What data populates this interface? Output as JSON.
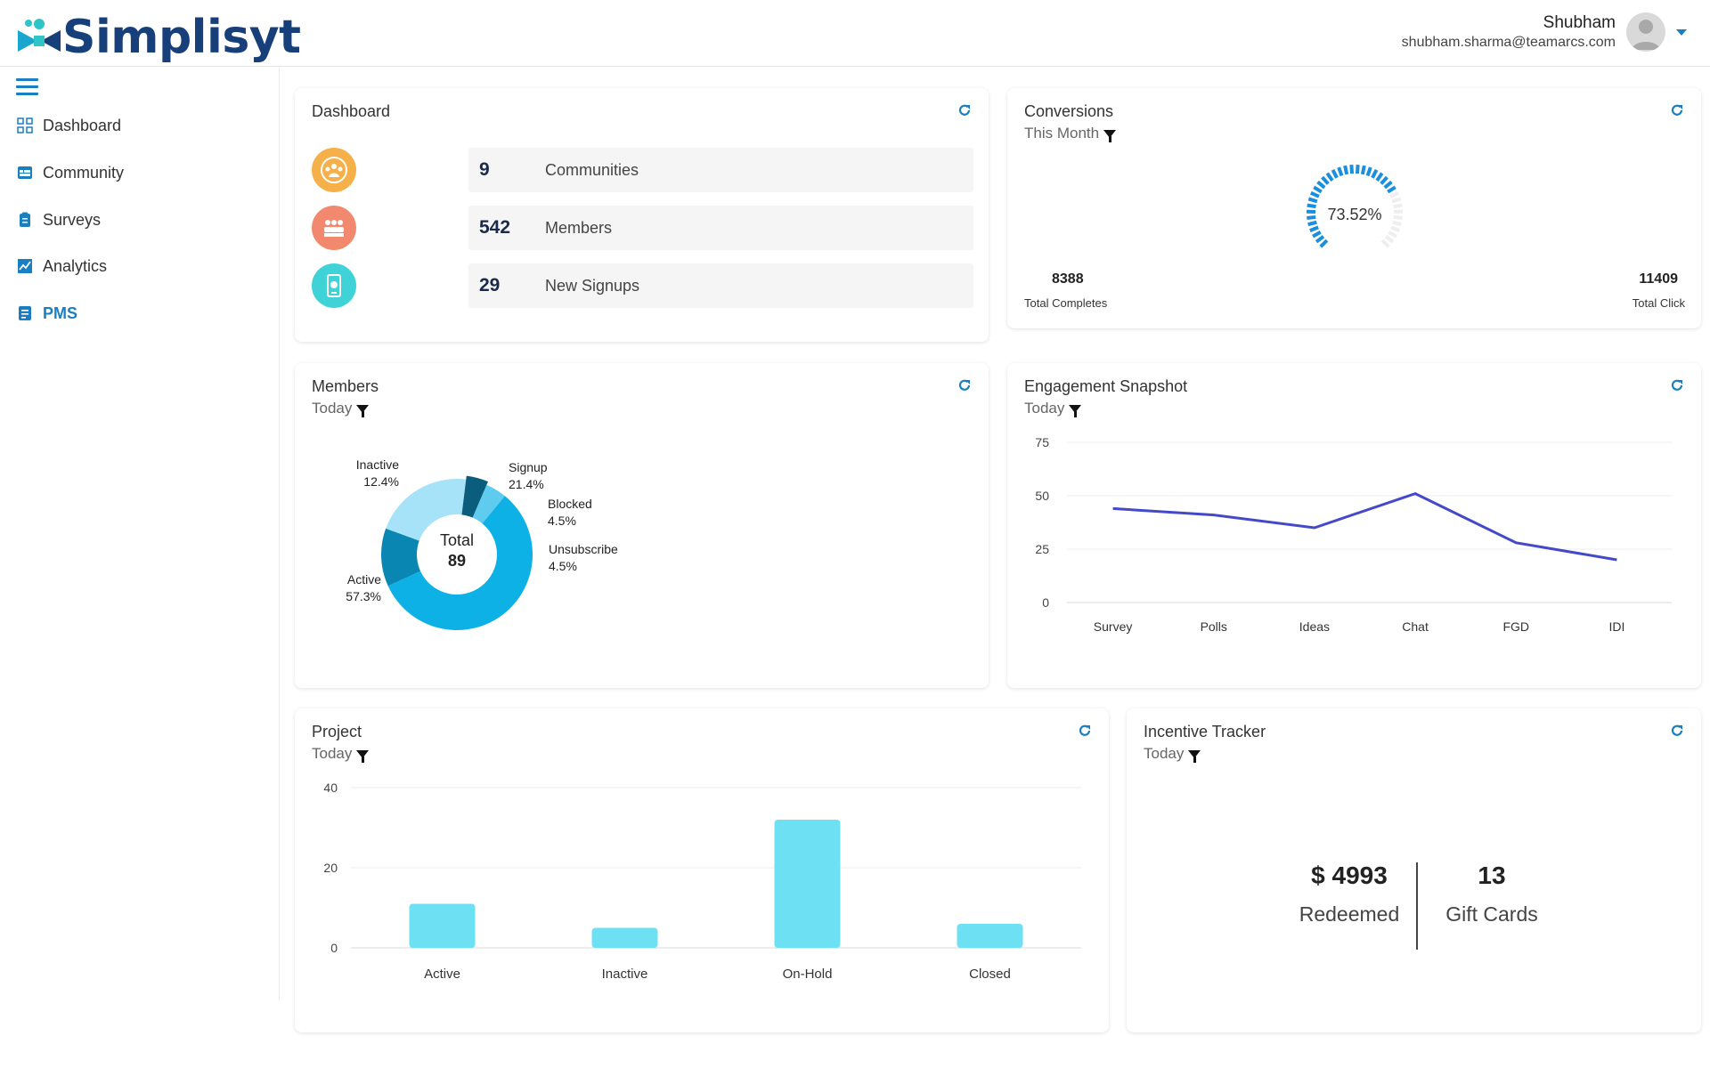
{
  "app": {
    "logo_text": "Simplisyt"
  },
  "user": {
    "name": "Shubham",
    "email": "shubham.sharma@teamarcs.com"
  },
  "sidebar": {
    "items": [
      {
        "label": "Dashboard",
        "icon": "grid-icon",
        "active": false
      },
      {
        "label": "Community",
        "icon": "community-icon",
        "active": false
      },
      {
        "label": "Surveys",
        "icon": "clipboard-icon",
        "active": false
      },
      {
        "label": "Analytics",
        "icon": "chart-line-icon",
        "active": false
      },
      {
        "label": "PMS",
        "icon": "checklist-icon",
        "active": true
      }
    ]
  },
  "dashboard_card": {
    "title": "Dashboard",
    "stats": [
      {
        "value": "9",
        "label": "Communities",
        "color": "#f6b04a"
      },
      {
        "value": "542",
        "label": "Members",
        "color": "#f2896e"
      },
      {
        "value": "29",
        "label": "New Signups",
        "color": "#3fd3d8"
      }
    ]
  },
  "conversions_card": {
    "title": "Conversions",
    "filter": "This Month",
    "percent_label": "73.52%",
    "percent_value": 73.52,
    "total_completes_value": "8388",
    "total_completes_label": "Total Completes",
    "total_click_value": "11409",
    "total_click_label": "Total Click"
  },
  "members_card": {
    "title": "Members",
    "filter": "Today",
    "center_label": "Total",
    "center_value": "89"
  },
  "engagement_card": {
    "title": "Engagement Snapshot",
    "filter": "Today"
  },
  "project_card": {
    "title": "Project",
    "filter": "Today"
  },
  "incentive_card": {
    "title": "Incentive Tracker",
    "filter": "Today",
    "redeemed_value": "$ 4993",
    "redeemed_label": "Redeemed",
    "giftcards_value": "13",
    "giftcards_label": "Gift Cards"
  },
  "chart_data": [
    {
      "type": "pie",
      "donut": true,
      "slices": [
        {
          "label": "Signup",
          "percent_label": "21.4%",
          "value": 21.4,
          "color": "#a6e3f8"
        },
        {
          "label": "Blocked",
          "percent_label": "4.5%",
          "value": 4.5,
          "color": "#0b5d7e"
        },
        {
          "label": "Unsubscribe",
          "percent_label": "4.5%",
          "value": 4.5,
          "color": "#5fcbee"
        },
        {
          "label": "Active",
          "percent_label": "57.3%",
          "value": 57.3,
          "color": "#0db1e6"
        },
        {
          "label": "Inactive",
          "percent_label": "12.4%",
          "value": 12.4,
          "color": "#0a86b3"
        }
      ]
    },
    {
      "type": "line",
      "categories": [
        "Survey",
        "Polls",
        "Ideas",
        "Chat",
        "FGD",
        "IDI"
      ],
      "series": [
        {
          "values": [
            44,
            41,
            35,
            51,
            28,
            20
          ],
          "color": "#4349c9"
        }
      ],
      "yticks": [
        0,
        25,
        50,
        75
      ],
      "ylim": [
        0,
        75
      ],
      "grid": true
    },
    {
      "type": "bar",
      "categories": [
        "Active",
        "Inactive",
        "On-Hold",
        "Closed"
      ],
      "values": [
        11,
        5,
        32,
        6
      ],
      "color": "#6ee0f4",
      "yticks": [
        0,
        20,
        40
      ],
      "ylim": [
        0,
        40
      ],
      "grid": true
    }
  ]
}
